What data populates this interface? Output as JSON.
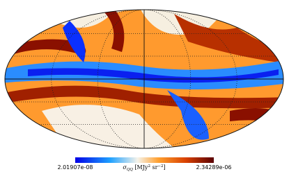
{
  "colorbar": {
    "min": {
      "value": 2.01907e-08,
      "label": "2.01907e-08"
    },
    "max": {
      "value": 2.34289e-06,
      "label": "2.34289e-06"
    },
    "label_parts": [
      "σ",
      "QQ",
      " [MJy",
      "2",
      " sr",
      "−2",
      "]"
    ]
  }
}
